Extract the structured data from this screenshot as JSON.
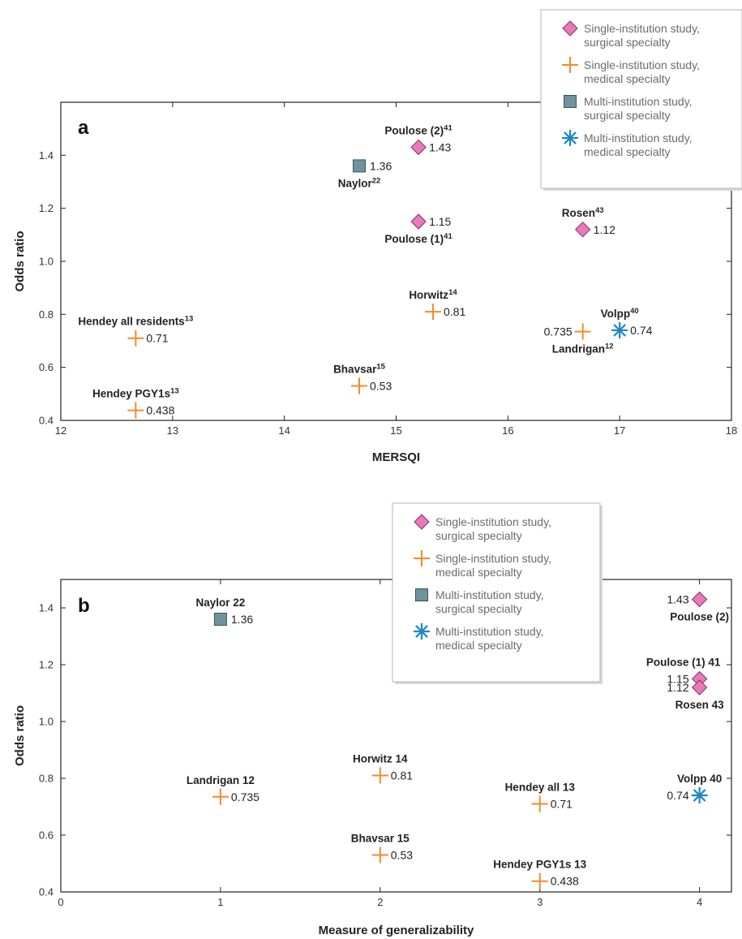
{
  "legend_entries": [
    {
      "key": "ss",
      "marker": "diamond",
      "line1": "Single-institution study,",
      "line2": "surgical specialty"
    },
    {
      "key": "sm",
      "marker": "plus",
      "line1": "Single-institution study,",
      "line2": "medical specialty"
    },
    {
      "key": "ms",
      "marker": "square",
      "line1": "Multi-institution study,",
      "line2": "surgical specialty"
    },
    {
      "key": "mm",
      "marker": "asterisk",
      "line1": "Multi-institution study,",
      "line2": "medical specialty"
    }
  ],
  "colors": {
    "diamond_fill": "#e87ab6",
    "diamond_stroke": "#8a2f6a",
    "plus": "#f58a2a",
    "square_fill": "#6e939c",
    "square_stroke": "#35555e",
    "asterisk": "#1b87c9",
    "axis": "#222222",
    "legend_border": "#b5b5b5"
  },
  "chart_data": [
    {
      "type": "scatter",
      "panel_label": "a",
      "xlabel": "MERSQI",
      "ylabel": "Odds ratio",
      "xlim": [
        12,
        18
      ],
      "ylim": [
        0.4,
        1.6
      ],
      "xticks": [
        12,
        13,
        14,
        15,
        16,
        17,
        18
      ],
      "yticks": [
        0.4,
        0.6,
        0.8,
        1.0,
        1.2,
        1.4
      ],
      "ytick_labels": [
        "0.4",
        "0.6",
        "0.8",
        "1.0",
        "1.2",
        "1.4"
      ],
      "legend": "top-right",
      "points": [
        {
          "name": "Poulose (2)",
          "sup": "41",
          "x": 15.2,
          "y": 1.43,
          "value_text": "1.43",
          "marker": "diamond",
          "name_pos": "above",
          "value_pos": "right"
        },
        {
          "name": "Naylor",
          "sup": "22",
          "x": 14.67,
          "y": 1.36,
          "value_text": "1.36",
          "marker": "square",
          "name_pos": "below",
          "value_pos": "right"
        },
        {
          "name": "Poulose (1)",
          "sup": "41",
          "x": 15.2,
          "y": 1.15,
          "value_text": "1.15",
          "marker": "diamond",
          "name_pos": "below",
          "value_pos": "right"
        },
        {
          "name": "Rosen",
          "sup": "43",
          "x": 16.67,
          "y": 1.12,
          "value_text": "1.12",
          "marker": "diamond",
          "name_pos": "above",
          "value_pos": "right"
        },
        {
          "name": "Horwitz",
          "sup": "14",
          "x": 15.33,
          "y": 0.81,
          "value_text": "0.81",
          "marker": "plus",
          "name_pos": "above",
          "value_pos": "right"
        },
        {
          "name": "Hendey all residents",
          "sup": "13",
          "x": 12.67,
          "y": 0.71,
          "value_text": "0.71",
          "marker": "plus",
          "name_pos": "above",
          "value_pos": "right"
        },
        {
          "name": "Landrigan",
          "sup": "12",
          "x": 16.67,
          "y": 0.735,
          "value_text": "0.735",
          "marker": "plus",
          "name_pos": "below",
          "value_pos": "left"
        },
        {
          "name": "Volpp",
          "sup": "40",
          "x": 17.0,
          "y": 0.74,
          "value_text": "0.74",
          "marker": "asterisk",
          "name_pos": "above",
          "value_pos": "right"
        },
        {
          "name": "Bhavsar",
          "sup": "15",
          "x": 14.67,
          "y": 0.53,
          "value_text": "0.53",
          "marker": "plus",
          "name_pos": "above",
          "value_pos": "right"
        },
        {
          "name": "Hendey PGY1s",
          "sup": "13",
          "x": 12.67,
          "y": 0.438,
          "value_text": "0.438",
          "marker": "plus",
          "name_pos": "above",
          "value_pos": "right"
        }
      ]
    },
    {
      "type": "scatter",
      "panel_label": "b",
      "xlabel": "Measure of generalizability",
      "ylabel": "Odds ratio",
      "xlim": [
        0,
        4.2
      ],
      "ylim": [
        0.4,
        1.5
      ],
      "xticks": [
        0,
        1,
        2,
        3,
        4
      ],
      "yticks": [
        0.4,
        0.6,
        0.8,
        1.0,
        1.2,
        1.4
      ],
      "ytick_labels": [
        "0.4",
        "0.6",
        "0.8",
        "1.0",
        "1.2",
        "1.4"
      ],
      "legend": "top-center",
      "points": [
        {
          "name": "Naylor 22",
          "sup": "",
          "x": 1,
          "y": 1.36,
          "value_text": "1.36",
          "marker": "square",
          "name_pos": "above",
          "value_pos": "right"
        },
        {
          "name": "Poulose (2)",
          "sup": "",
          "x": 4,
          "y": 1.43,
          "value_text": "1.43",
          "marker": "diamond",
          "name_pos": "below",
          "value_pos": "left"
        },
        {
          "name": "Poulose (1) 41",
          "sup": "",
          "x": 4,
          "y": 1.15,
          "value_text": "1.15",
          "marker": "diamond",
          "name_pos": "above",
          "value_pos": "left"
        },
        {
          "name": "Rosen 43",
          "sup": "",
          "x": 4,
          "y": 1.12,
          "value_text": "1.12",
          "marker": "diamond",
          "name_pos": "below",
          "value_pos": "left"
        },
        {
          "name": "Horwitz 14",
          "sup": "",
          "x": 2,
          "y": 0.81,
          "value_text": "0.81",
          "marker": "plus",
          "name_pos": "above",
          "value_pos": "right"
        },
        {
          "name": "Landrigan 12",
          "sup": "",
          "x": 1,
          "y": 0.735,
          "value_text": "0.735",
          "marker": "plus",
          "name_pos": "above",
          "value_pos": "right"
        },
        {
          "name": "Hendey all 13",
          "sup": "",
          "x": 3,
          "y": 0.71,
          "value_text": "0.71",
          "marker": "plus",
          "name_pos": "above",
          "value_pos": "right"
        },
        {
          "name": "Volpp 40",
          "sup": "",
          "x": 4,
          "y": 0.74,
          "value_text": "0.74",
          "marker": "asterisk",
          "name_pos": "above",
          "value_pos": "left"
        },
        {
          "name": "Bhavsar 15",
          "sup": "",
          "x": 2,
          "y": 0.53,
          "value_text": "0.53",
          "marker": "plus",
          "name_pos": "above",
          "value_pos": "right"
        },
        {
          "name": "Hendey PGY1s 13",
          "sup": "",
          "x": 3,
          "y": 0.438,
          "value_text": "0.438",
          "marker": "plus",
          "name_pos": "above",
          "value_pos": "right"
        }
      ]
    }
  ]
}
